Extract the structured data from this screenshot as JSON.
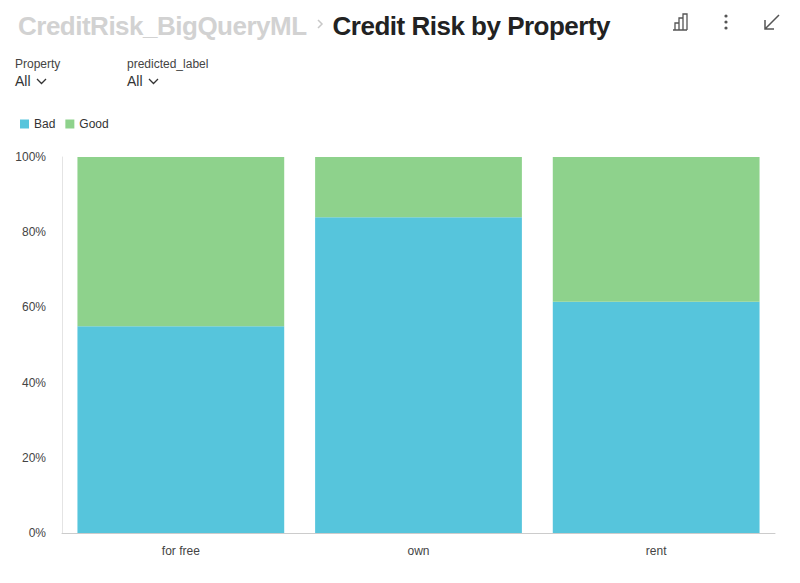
{
  "header": {
    "breadcrumb": "CreditRisk_BigQueryML",
    "title": "Credit Risk by Property"
  },
  "filters": [
    {
      "label": "Property",
      "value": "All"
    },
    {
      "label": "predicted_label",
      "value": "All"
    }
  ],
  "chart_data": {
    "type": "bar",
    "categories": [
      "for free",
      "own",
      "rent"
    ],
    "series": [
      {
        "name": "Bad",
        "color": "#56c5dc",
        "values": [
          55,
          84,
          61.5
        ]
      },
      {
        "name": "Good",
        "color": "#8ed28c",
        "values": [
          45,
          16,
          38.5
        ]
      }
    ],
    "ylim": [
      0,
      100
    ],
    "yticks": [
      {
        "value": 0,
        "label": "0%"
      },
      {
        "value": 20,
        "label": "20%"
      },
      {
        "value": 40,
        "label": "40%"
      },
      {
        "value": 60,
        "label": "60%"
      },
      {
        "value": 80,
        "label": "80%"
      },
      {
        "value": 100,
        "label": "100%"
      }
    ],
    "stacked": true,
    "grid": false,
    "legend": "top-left"
  }
}
